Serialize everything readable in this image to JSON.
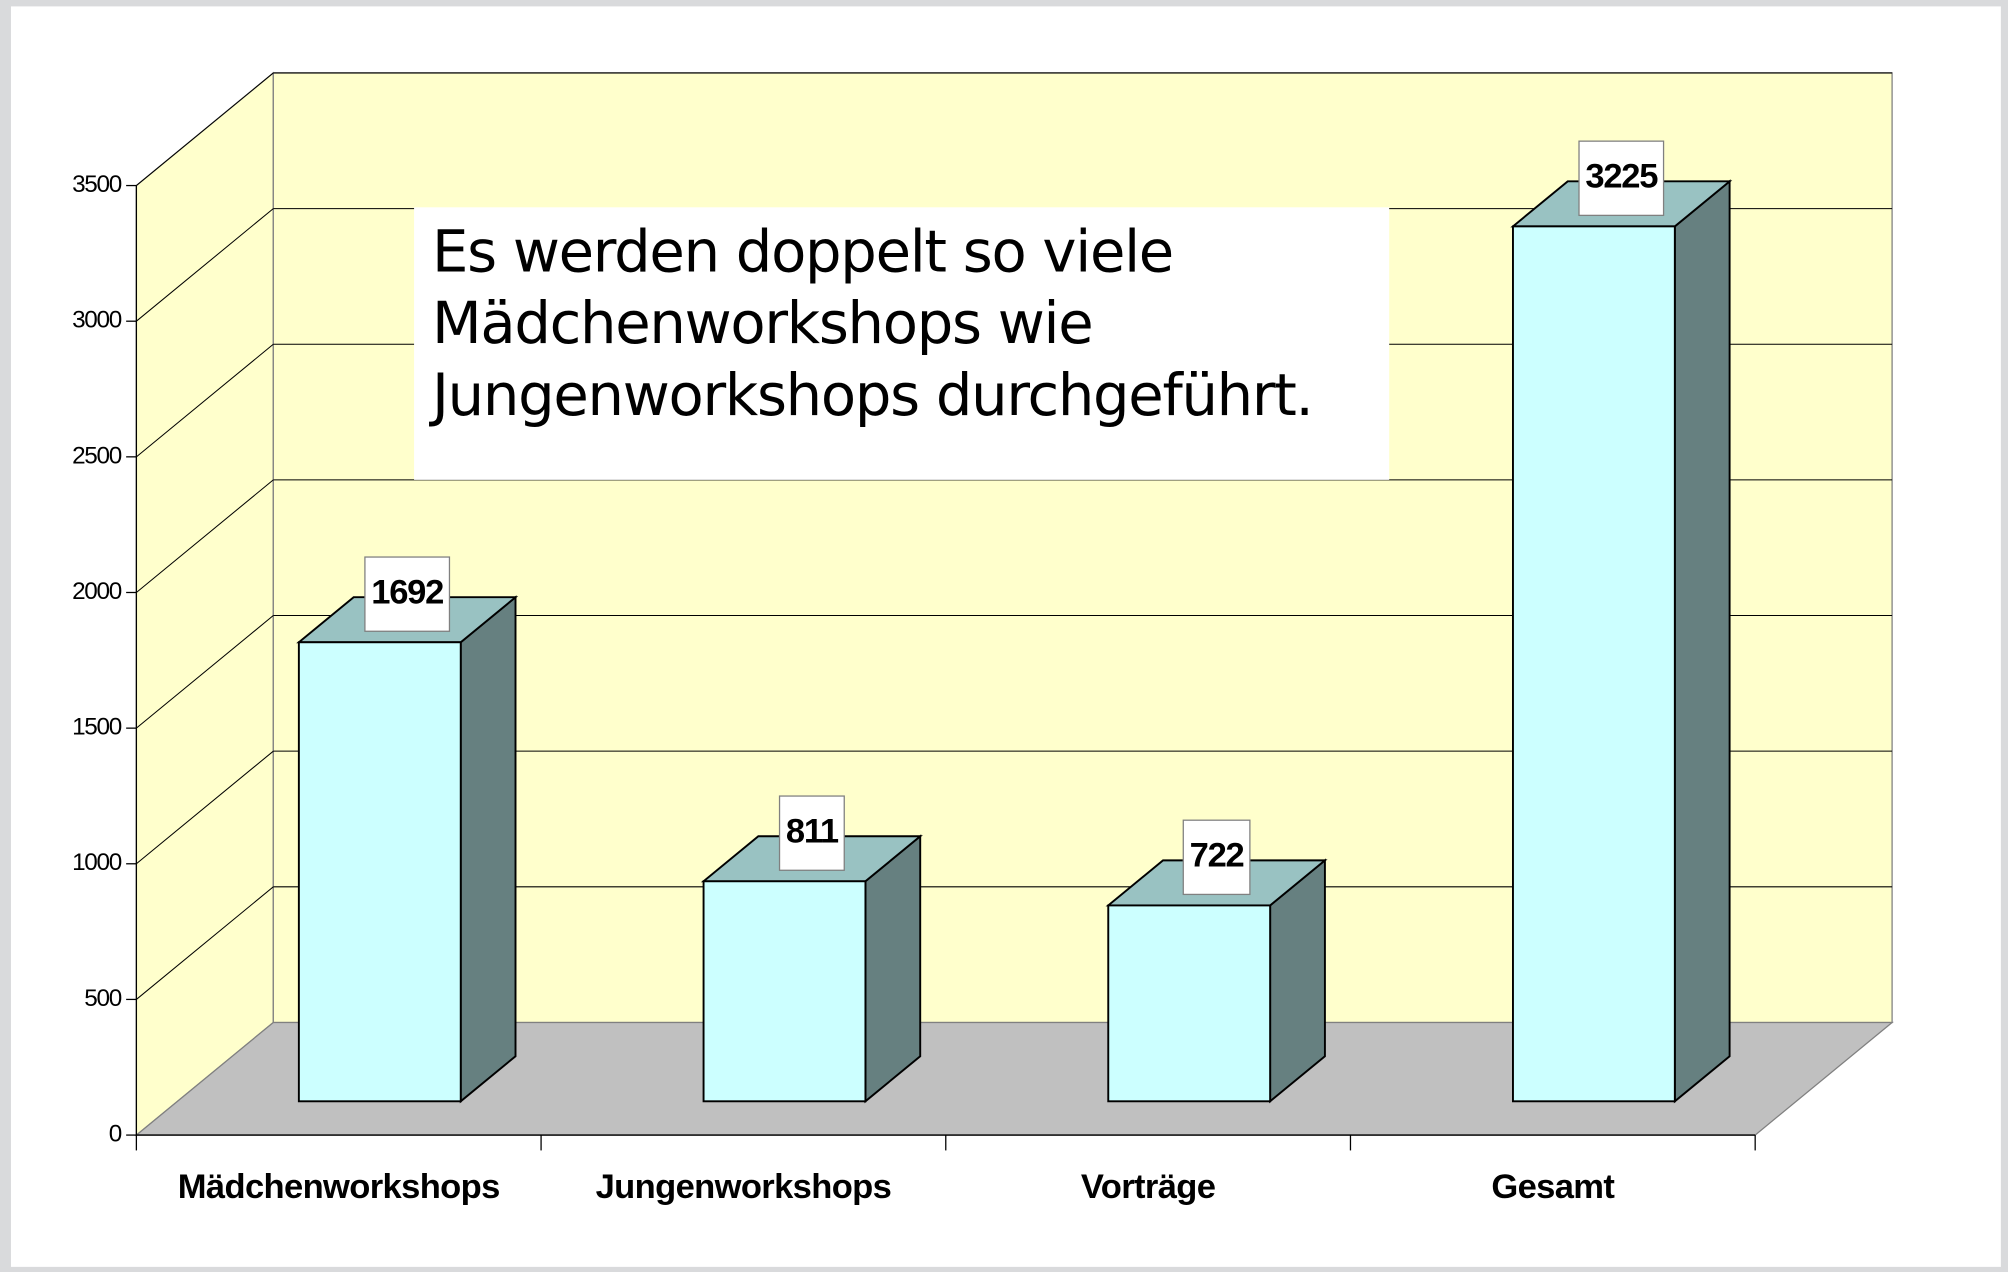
{
  "chart_data": {
    "type": "bar3d",
    "annotation": [
      "Es werden doppelt so viele",
      "Mädchenworkshops wie",
      "Jungenworkshops durchgeführt."
    ],
    "categories": [
      "Mädchenworkshops",
      "Jungenworkshops",
      "Vorträge",
      "Gesamt"
    ],
    "values": [
      1692,
      811,
      722,
      3225
    ],
    "color": "#ccffff",
    "ylim": [
      0,
      3500
    ],
    "yticks": [
      0,
      500,
      1000,
      1500,
      2000,
      2500,
      3000,
      3500
    ],
    "grid": true
  }
}
